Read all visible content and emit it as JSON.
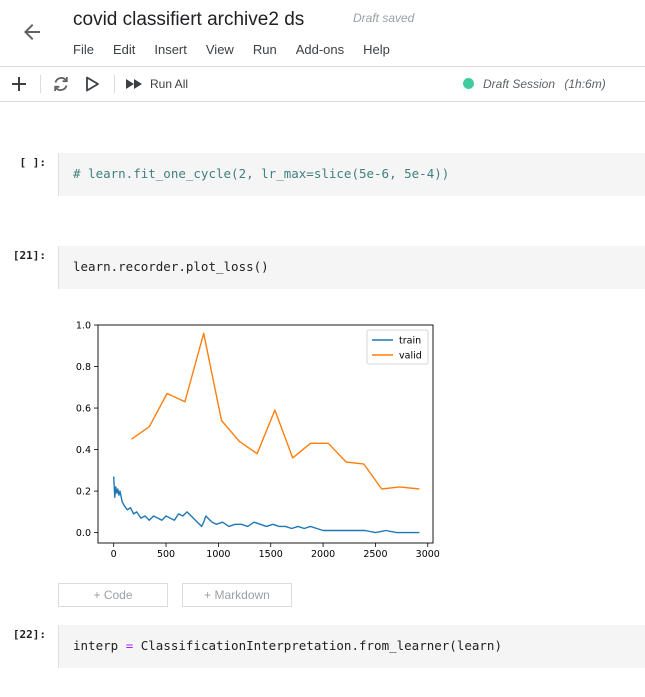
{
  "header": {
    "title": "covid classifiert archive2 ds",
    "draft_status": "Draft saved",
    "menu": [
      "File",
      "Edit",
      "Insert",
      "View",
      "Run",
      "Add-ons",
      "Help"
    ]
  },
  "toolbar": {
    "run_all_label": "Run All",
    "session_label": "Draft Session",
    "session_time": "(1h:6m)",
    "session_color": "#3fcd9e"
  },
  "cells": [
    {
      "prompt": "[ ]:",
      "code": "# learn.fit_one_cycle(2, lr_max=slice(5e-6, 5e-4))"
    },
    {
      "prompt": "[21]:",
      "code": "learn.recorder.plot_loss()"
    },
    {
      "prompt": "[22]:",
      "code_parts": [
        "interp ",
        "=",
        " ClassificationInterpretation.from_learner(learn)"
      ]
    }
  ],
  "add_cell": {
    "code_label": "+ Code",
    "markdown_label": "+ Markdown"
  },
  "chart_data": {
    "type": "line",
    "title": "",
    "xlabel": "",
    "ylabel": "",
    "xlim": [
      -150,
      3050
    ],
    "ylim": [
      -0.05,
      1.0
    ],
    "xticks": [
      0,
      500,
      1000,
      1500,
      2000,
      2500,
      3000
    ],
    "yticks": [
      0.0,
      0.2,
      0.4,
      0.6,
      0.8,
      1.0
    ],
    "legend_position": "top-right",
    "grid": false,
    "series": [
      {
        "name": "train",
        "color": "#1f77b4",
        "x": [
          0,
          10,
          20,
          30,
          40,
          50,
          60,
          80,
          100,
          130,
          160,
          190,
          220,
          260,
          300,
          340,
          380,
          420,
          460,
          500,
          540,
          580,
          620,
          660,
          700,
          740,
          780,
          820,
          840,
          860,
          880,
          900,
          940,
          980,
          1040,
          1100,
          1160,
          1220,
          1280,
          1340,
          1400,
          1460,
          1520,
          1580,
          1640,
          1700,
          1760,
          1820,
          1880,
          1940,
          2000,
          2100,
          2200,
          2300,
          2400,
          2500,
          2600,
          2700,
          2800,
          2920
        ],
        "y": [
          0.27,
          0.17,
          0.22,
          0.19,
          0.21,
          0.18,
          0.2,
          0.15,
          0.13,
          0.11,
          0.12,
          0.09,
          0.1,
          0.07,
          0.08,
          0.06,
          0.08,
          0.07,
          0.06,
          0.08,
          0.07,
          0.06,
          0.09,
          0.08,
          0.1,
          0.08,
          0.06,
          0.04,
          0.03,
          0.05,
          0.08,
          0.07,
          0.05,
          0.04,
          0.05,
          0.03,
          0.04,
          0.04,
          0.03,
          0.05,
          0.04,
          0.03,
          0.04,
          0.03,
          0.03,
          0.02,
          0.03,
          0.02,
          0.03,
          0.02,
          0.01,
          0.01,
          0.01,
          0.01,
          0.01,
          0.0,
          0.01,
          0.0,
          0.0,
          0.0
        ]
      },
      {
        "name": "valid",
        "color": "#ff7f0e",
        "x": [
          170,
          340,
          510,
          680,
          860,
          1030,
          1200,
          1370,
          1540,
          1710,
          1880,
          2050,
          2220,
          2390,
          2560,
          2730,
          2920
        ],
        "y": [
          0.45,
          0.51,
          0.67,
          0.63,
          0.96,
          0.54,
          0.44,
          0.38,
          0.59,
          0.36,
          0.43,
          0.43,
          0.34,
          0.33,
          0.21,
          0.22,
          0.21
        ]
      }
    ]
  }
}
